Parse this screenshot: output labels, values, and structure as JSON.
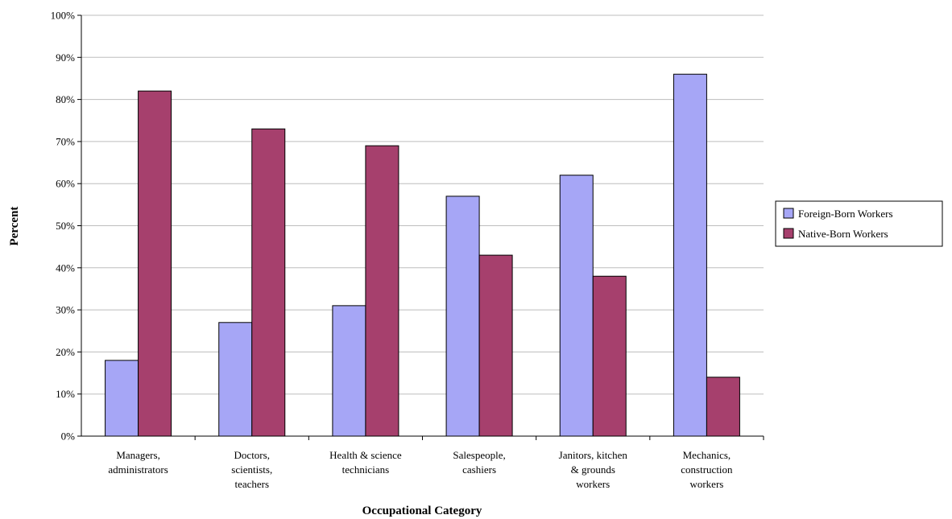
{
  "chart_data": {
    "type": "bar",
    "title": "",
    "xlabel": "Occupational Category",
    "ylabel": "Percent",
    "ylim": [
      0,
      100
    ],
    "yticks": [
      "0%",
      "10%",
      "20%",
      "30%",
      "40%",
      "50%",
      "60%",
      "70%",
      "80%",
      "90%",
      "100%"
    ],
    "grid": true,
    "legend": "right",
    "categories": [
      [
        "Managers,",
        "administrators"
      ],
      [
        "Doctors,",
        "scientists,",
        "teachers"
      ],
      [
        "Health & science",
        "technicians"
      ],
      [
        "Salespeople,",
        "cashiers"
      ],
      [
        "Janitors, kitchen",
        "& grounds",
        "workers"
      ],
      [
        "Mechanics,",
        "construction",
        "workers"
      ]
    ],
    "series": [
      {
        "name": "Foreign-Born Workers",
        "color": "#a6a6f6",
        "values": [
          18,
          27,
          31,
          57,
          62,
          86
        ]
      },
      {
        "name": "Native-Born Workers",
        "color": "#a6406d",
        "values": [
          82,
          73,
          69,
          43,
          38,
          14
        ]
      }
    ]
  }
}
